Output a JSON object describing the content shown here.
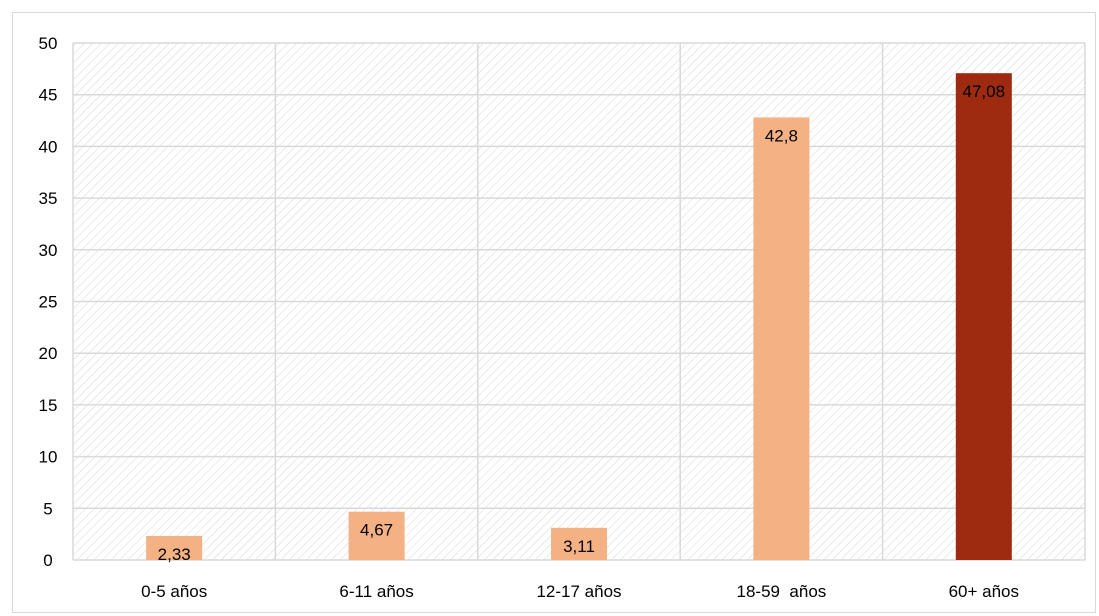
{
  "chart_data": {
    "type": "bar",
    "title": "",
    "xlabel": "",
    "ylabel": "",
    "categories": [
      "0-5 años",
      "6-11 años",
      "12-17 años",
      "18-59  años",
      "60+ años"
    ],
    "values": [
      2.33,
      4.67,
      3.11,
      42.8,
      47.08
    ],
    "value_labels": [
      "2,33",
      "4,67",
      "3,11",
      "42,8",
      "47,08"
    ],
    "ylim": [
      0,
      50
    ],
    "yticks": [
      0,
      5,
      10,
      15,
      20,
      25,
      30,
      35,
      40,
      45,
      50
    ],
    "grid": true,
    "legend": "none",
    "colors": {
      "bar_default": "#f4b183",
      "bar_highlight": "#9e2a10",
      "grid": "#d9d9d9",
      "hatch": "#dcdcdc"
    },
    "highlight_index": 4
  }
}
